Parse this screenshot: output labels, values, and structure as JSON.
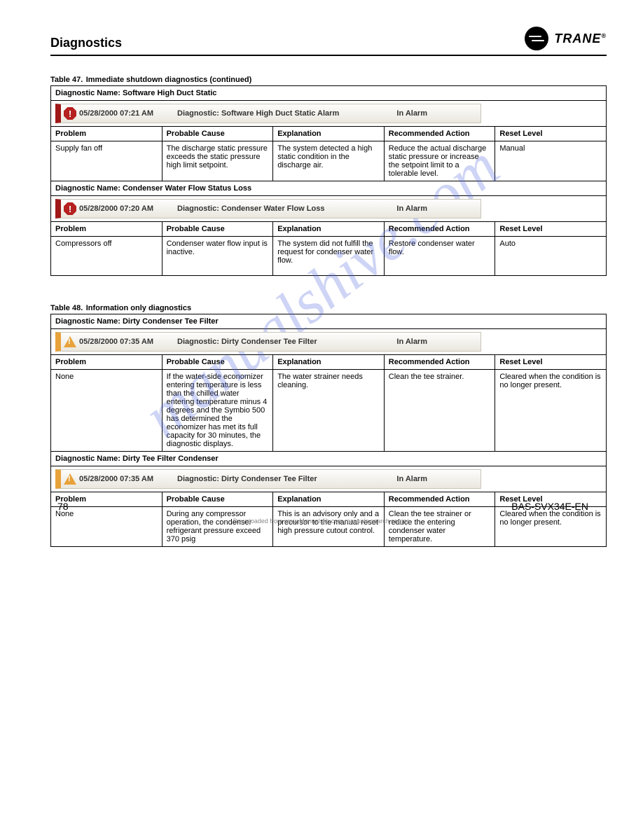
{
  "header": {
    "section": "Diagnostics",
    "brand": "TRANE"
  },
  "watermark": "manualshive.com",
  "page_number": "78",
  "doc_id": "BAS-SVX34E-EN",
  "confidential": "Downloaded from www.Manualslib.com manuals search engine",
  "cols": {
    "problem": "Problem",
    "reason": "Probable Cause",
    "explanation": "Explanation",
    "action": "Recommended Action",
    "reset": "Reset Level"
  },
  "t47": {
    "num": "Table 47.",
    "title": "Immediate shutdown diagnostics (continued)",
    "r1": {
      "name": "Diagnostic Name: Software High Duct Static",
      "a": {
        "time": "05/28/2000 07:21 AM",
        "diag": "Diagnostic: Software High Duct Static Alarm",
        "stat": "In Alarm"
      },
      "problem": "Supply fan off",
      "reason": "The discharge static pressure exceeds the static pressure high limit setpoint.",
      "explanation": "The system detected a high static condition in the discharge air.",
      "action": "Reduce the actual discharge static pressure or increase the setpoint limit to a tolerable level.",
      "reset": "Manual"
    },
    "r2": {
      "name": "Diagnostic Name: Condenser Water Flow Status Loss",
      "a": {
        "time": "05/28/2000 07:20 AM",
        "diag": "Diagnostic: Condenser Water Flow Loss",
        "stat": "In Alarm"
      },
      "problem": "Compressors off",
      "reason": "Condenser water flow input is inactive.",
      "explanation": "The system did not fulfill the request for condenser water flow.",
      "action": "Restore condenser water flow.",
      "reset": "Auto"
    }
  },
  "t48": {
    "num": "Table 48.",
    "title": "Information only diagnostics",
    "r1": {
      "name": "Diagnostic Name: Dirty Condenser Tee Filter",
      "a": {
        "time": "05/28/2000 07:35 AM",
        "diag": "Diagnostic: Dirty Condenser Tee Filter",
        "stat": "In Alarm"
      },
      "problem": "None",
      "reason": "If the water-side economizer entering temperature is less than the chilled water entering temperature minus 4 degrees and the Symbio 500 has determined the economizer has met its full capacity for 30 minutes, the diagnostic displays.",
      "explanation": "The water strainer needs cleaning.",
      "action": "Clean the tee strainer.",
      "reset": "Cleared when the condition is no longer present."
    },
    "r2": {
      "name": "Diagnostic Name: Dirty Tee Filter Condenser",
      "a": {
        "time": "05/28/2000 07:35 AM",
        "diag": "Diagnostic: Dirty Condenser Tee Filter",
        "stat": "In Alarm"
      },
      "problem": "None",
      "reason": "During any compressor operation, the condenser refrigerant pressure exceed 370 psig",
      "explanation": "This is an advisory only and a precursor to the manual reset high pressure cutout control.",
      "action": "Clean the tee strainer or reduce the entering condenser water temperature.",
      "reset": "Cleared when the condition is no longer present."
    }
  }
}
